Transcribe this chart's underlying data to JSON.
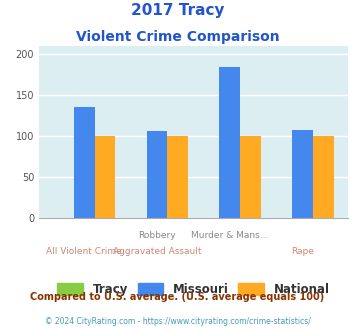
{
  "title_line1": "2017 Tracy",
  "title_line2": "Violent Crime Comparison",
  "cat_top": [
    "",
    "Robbery",
    "Murder & Mans...",
    ""
  ],
  "cat_bot": [
    "All Violent Crime",
    "Aggravated Assault",
    "",
    "Rape"
  ],
  "tracy_values": [
    0,
    0,
    0,
    0
  ],
  "missouri_values": [
    135,
    106,
    185,
    107
  ],
  "national_values": [
    100,
    100,
    100,
    100
  ],
  "tracy_color": "#88cc44",
  "missouri_color": "#4488ee",
  "national_color": "#ffaa22",
  "bg_color": "#ddeef2",
  "ylim": [
    0,
    210
  ],
  "yticks": [
    0,
    50,
    100,
    150,
    200
  ],
  "legend_labels": [
    "Tracy",
    "Missouri",
    "National"
  ],
  "footnote1": "Compared to U.S. average. (U.S. average equals 100)",
  "footnote2": "© 2024 CityRating.com - https://www.cityrating.com/crime-statistics/",
  "title_color": "#2255cc",
  "cat_top_color": "#888888",
  "cat_bot_color": "#cc8877",
  "footnote1_color": "#883300",
  "footnote2_color": "#4499bb",
  "legend_text_color": "#333333"
}
